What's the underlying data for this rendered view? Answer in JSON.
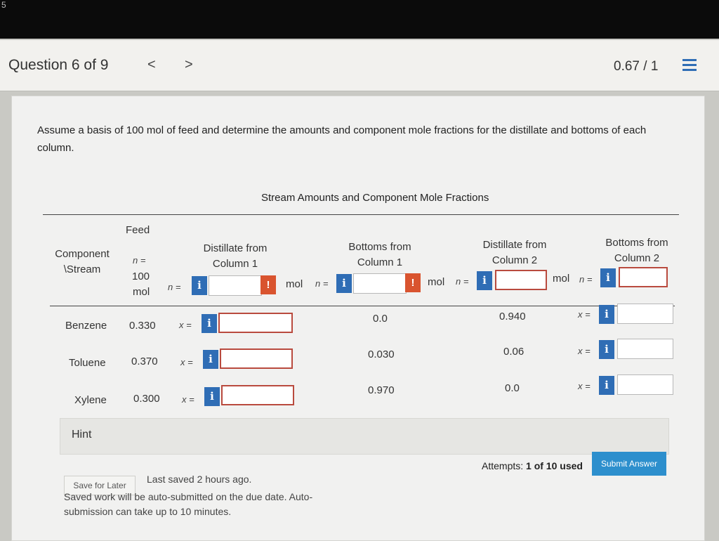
{
  "header": {
    "question_label": "Question 6 of 9",
    "prev_glyph": "<",
    "next_glyph": ">",
    "score": "0.67 / 1"
  },
  "question": {
    "text": "Assume a basis of 100 mol of feed and determine the amounts and component mole fractions for the distillate and bottoms of each column."
  },
  "table": {
    "title": "Stream Amounts and Component Mole Fractions",
    "component_header_line1": "Component",
    "component_header_line2": "\\Stream",
    "columns": {
      "feed": {
        "label": "Feed",
        "n_label": "n =",
        "n_value": "100",
        "n_unit": "mol"
      },
      "dist1": {
        "line1": "Distillate from",
        "line2": "Column 1",
        "n_label": "n =",
        "unit": "mol"
      },
      "bot1": {
        "line1": "Bottoms from",
        "line2": "Column 1",
        "n_label": "n =",
        "unit": "mol"
      },
      "dist2": {
        "line1": "Distillate from",
        "line2": "Column 2",
        "n_label": "n =",
        "unit": "mol"
      },
      "bot2": {
        "line1": "Bottoms from",
        "line2": "Column 2",
        "n_label": "n ="
      }
    },
    "x_label": "x =",
    "info_glyph": "i",
    "warn_glyph": "!",
    "rows": [
      {
        "component": "Benzene",
        "feed": "0.330",
        "bot1": "0.0",
        "dist2": "0.940"
      },
      {
        "component": "Toluene",
        "feed": "0.370",
        "bot1": "0.030",
        "dist2": "0.06"
      },
      {
        "component": "Xylene",
        "feed": "0.300",
        "bot1": "0.970",
        "dist2": "0.0"
      }
    ]
  },
  "hint": {
    "label": "Hint"
  },
  "footer": {
    "save_label": "Save for Later",
    "saved_time": "Last saved 2 hours ago.",
    "saved_note": "Saved work will be auto-submitted on the due date. Auto-submission can take up to 10 minutes.",
    "attempts_prefix": "Attempts:",
    "attempts_value": "1 of 10 used",
    "submit_label": "Submit Answer"
  },
  "colors": {
    "accent": "#2f6db5",
    "warning": "#d9542f",
    "submit": "#2d8fcd",
    "input_border": "#b94a3e"
  }
}
